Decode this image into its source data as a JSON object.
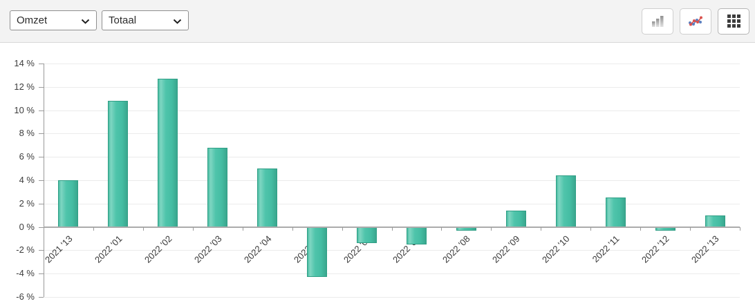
{
  "toolbar": {
    "metric_select": {
      "value": "Omzet"
    },
    "view_select": {
      "value": "Totaal"
    },
    "buttons": [
      {
        "name": "bar-chart-view"
      },
      {
        "name": "line-chart-view"
      },
      {
        "name": "grid-view"
      }
    ]
  },
  "chart_data": {
    "type": "bar",
    "categories": [
      "2021 '13",
      "2022 '01",
      "2022 '02",
      "2022 '03",
      "2022 '04",
      "2022 '05",
      "2022 '06",
      "2022 '07",
      "2022 '08",
      "2022 '09",
      "2022 '10",
      "2022 '11",
      "2022 '12",
      "2022 '13"
    ],
    "values": [
      4.0,
      10.8,
      12.7,
      6.8,
      5.0,
      -4.3,
      -1.4,
      -1.5,
      -0.3,
      1.4,
      4.4,
      2.5,
      -0.3,
      1.0
    ],
    "title": "",
    "xlabel": "",
    "ylabel": "",
    "ylim": [
      -6,
      14
    ],
    "ytick_step": 2,
    "ytick_labels": [
      "14 %",
      "12 %",
      "10 %",
      "8 %",
      "6 %",
      "4 %",
      "2 %",
      "0 %",
      "-2 %",
      "-4 %",
      "-6 %"
    ],
    "unit": "%",
    "grid": true,
    "legend": false,
    "bar_color": "#46bda3",
    "bar_border_color": "#2f9e85",
    "zero_line_color": "#ababab",
    "gridline_color": "#ebebeb"
  }
}
